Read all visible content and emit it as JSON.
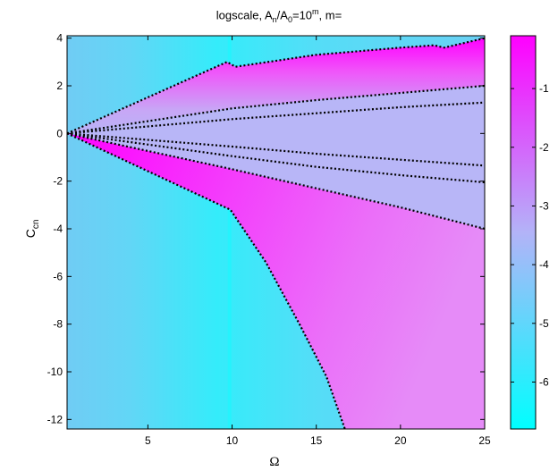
{
  "chart_data": {
    "type": "heatmap",
    "title": {
      "prefix": "logscale, A",
      "sub_n": "n",
      "slash": "/A",
      "sub_0": "0",
      "eq": "=10",
      "sup_m": "m",
      "suffix": ", m="
    },
    "xlabel": "Ω",
    "ylabel": {
      "base": "C",
      "sub": "cn"
    },
    "xlim": [
      0.2,
      25
    ],
    "ylim": [
      -12.4,
      4.1
    ],
    "xticks": [
      5,
      10,
      15,
      20,
      25
    ],
    "yticks": [
      4,
      2,
      0,
      -2,
      -4,
      -6,
      -8,
      -10,
      -12
    ],
    "colorbar": {
      "ticks": [
        -1,
        -2,
        -3,
        -4,
        -5,
        -6
      ],
      "range": [
        -6.8,
        -0.1
      ],
      "colors": {
        "top": "#ff00ff",
        "mid": "#b3b3f8",
        "bottom": "#00ffff"
      }
    },
    "background_level": -5.7,
    "region_boundaries": {
      "upper": [
        [
          0.2,
          0
        ],
        [
          9.7,
          3.0
        ],
        [
          10.2,
          2.8
        ],
        [
          15,
          3.3
        ],
        [
          20,
          3.6
        ],
        [
          22,
          3.7
        ],
        [
          22.6,
          3.6
        ],
        [
          25,
          4.0
        ]
      ],
      "lower": [
        [
          0.2,
          0
        ],
        [
          9.9,
          -3.2
        ],
        [
          12,
          -5.4
        ],
        [
          14,
          -8.0
        ],
        [
          15.6,
          -10.2
        ],
        [
          16.7,
          -12.4
        ]
      ]
    },
    "contour_lines": [
      {
        "level": "c1",
        "points": [
          [
            0.2,
            0
          ],
          [
            10,
            1.05
          ],
          [
            15,
            1.4
          ],
          [
            20,
            1.7
          ],
          [
            25,
            2.0
          ]
        ]
      },
      {
        "level": "c2",
        "points": [
          [
            0.2,
            0
          ],
          [
            10,
            0.6
          ],
          [
            15,
            0.85
          ],
          [
            20,
            1.1
          ],
          [
            25,
            1.3
          ]
        ]
      },
      {
        "level": "c3",
        "points": [
          [
            0.2,
            0
          ],
          [
            10,
            -0.55
          ],
          [
            15,
            -0.85
          ],
          [
            20,
            -1.1
          ],
          [
            25,
            -1.35
          ]
        ]
      },
      {
        "level": "c4",
        "points": [
          [
            0.2,
            0
          ],
          [
            10,
            -0.95
          ],
          [
            15,
            -1.4
          ],
          [
            20,
            -1.75
          ],
          [
            25,
            -2.05
          ]
        ]
      },
      {
        "level": "c5",
        "points": [
          [
            0.2,
            0
          ],
          [
            10,
            -1.5
          ],
          [
            15,
            -2.3
          ],
          [
            20,
            -3.1
          ],
          [
            25,
            -4.0
          ]
        ]
      }
    ],
    "vertical_streak_x": 9.85
  }
}
